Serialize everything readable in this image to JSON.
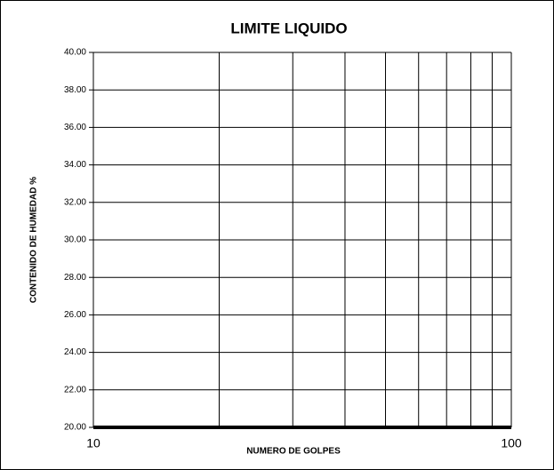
{
  "chart_data": {
    "type": "line",
    "title": "LIMITE LIQUIDO",
    "x_label": "NUMERO DE GOLPES",
    "y_label": "CONTENIDO DE HUMEDAD %",
    "series": [],
    "xscale": "log",
    "xlim": [
      10,
      100
    ],
    "xticks": [
      10,
      100
    ],
    "x_minor_ticks": [
      20,
      30,
      40,
      50,
      60,
      70,
      80,
      90
    ],
    "ylim": [
      20,
      40
    ],
    "yticks": [
      {
        "value": 20,
        "label": "20.00"
      },
      {
        "value": 22,
        "label": "22.00"
      },
      {
        "value": 24,
        "label": "24.00"
      },
      {
        "value": 26,
        "label": "26.00"
      },
      {
        "value": 28,
        "label": "28.00"
      },
      {
        "value": 30,
        "label": "30.00"
      },
      {
        "value": 32,
        "label": "32.00"
      },
      {
        "value": 34,
        "label": "34.00"
      },
      {
        "value": 36,
        "label": "36.00"
      },
      {
        "value": 38,
        "label": "38.00"
      },
      {
        "value": 40,
        "label": "40.00"
      }
    ],
    "grid": true
  }
}
